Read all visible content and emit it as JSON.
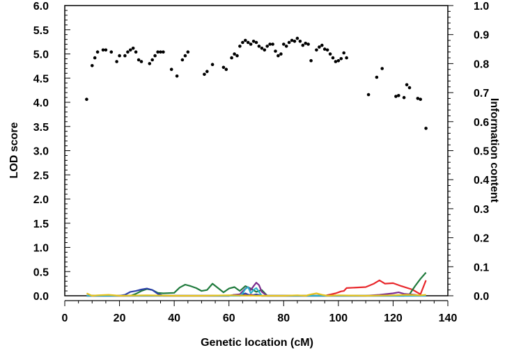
{
  "chart_data": {
    "type": "line",
    "title": "",
    "xlabel": "Genetic location (cM)",
    "ylabel": "LOD score",
    "y2label": "Information content",
    "xlim": [
      0,
      140
    ],
    "ylim": [
      0,
      6.0
    ],
    "y2lim": [
      0,
      1.0
    ],
    "x_ticks": [
      "0",
      "20",
      "40",
      "60",
      "80",
      "100",
      "120",
      "140"
    ],
    "y_ticks": [
      "0.0",
      "0.5",
      "1.0",
      "1.5",
      "2.0",
      "2.5",
      "3.0",
      "3.5",
      "4.0",
      "4.5",
      "5.0",
      "5.5",
      "6.0"
    ],
    "y2_ticks": [
      "0.0",
      "0.1",
      "0.2",
      "0.3",
      "0.4",
      "0.5",
      "0.6",
      "0.7",
      "0.8",
      "0.9",
      "1.0"
    ],
    "grid": false,
    "info_points": {
      "axis": "right",
      "color": "#000000",
      "x": [
        8,
        10,
        11,
        12,
        14,
        15,
        17,
        19,
        20,
        22,
        23,
        24,
        25,
        26,
        27,
        28,
        31,
        32,
        33,
        34,
        35,
        36,
        39,
        41,
        43,
        44,
        45,
        51,
        52,
        54,
        58,
        59,
        61,
        62,
        63,
        64,
        65,
        66,
        67,
        68,
        69,
        70,
        71,
        72,
        73,
        74,
        75,
        76,
        77,
        78,
        79,
        80,
        81,
        82,
        83,
        84,
        85,
        86,
        87,
        88,
        89,
        90,
        92,
        93,
        94,
        95,
        96,
        97,
        98,
        99,
        100,
        101,
        102,
        103,
        111,
        114,
        116,
        121,
        122,
        124,
        125,
        126,
        129,
        130,
        132
      ],
      "y": [
        0.677,
        0.793,
        0.82,
        0.84,
        0.847,
        0.847,
        0.84,
        0.807,
        0.827,
        0.827,
        0.84,
        0.847,
        0.853,
        0.84,
        0.813,
        0.807,
        0.8,
        0.813,
        0.827,
        0.84,
        0.84,
        0.84,
        0.78,
        0.757,
        0.813,
        0.827,
        0.84,
        0.763,
        0.773,
        0.797,
        0.787,
        0.78,
        0.82,
        0.833,
        0.827,
        0.86,
        0.873,
        0.88,
        0.873,
        0.867,
        0.877,
        0.873,
        0.86,
        0.853,
        0.847,
        0.86,
        0.867,
        0.867,
        0.843,
        0.827,
        0.833,
        0.867,
        0.86,
        0.873,
        0.88,
        0.877,
        0.887,
        0.877,
        0.863,
        0.87,
        0.867,
        0.81,
        0.847,
        0.857,
        0.863,
        0.85,
        0.847,
        0.833,
        0.82,
        0.807,
        0.81,
        0.817,
        0.837,
        0.82,
        0.693,
        0.753,
        0.783,
        0.687,
        0.69,
        0.683,
        0.727,
        0.717,
        0.68,
        0.677,
        0.577
      ]
    },
    "series": [
      {
        "color": "#e8262a",
        "axis": "left",
        "x": [
          8,
          20,
          60,
          64,
          68,
          70,
          72,
          95,
          99,
          101,
          102,
          103,
          110,
          113,
          115,
          117,
          120,
          123,
          127,
          130,
          132
        ],
        "y": [
          0.0,
          0.0,
          0.0,
          0.01,
          0.02,
          0.01,
          0.0,
          0.0,
          0.05,
          0.09,
          0.1,
          0.16,
          0.18,
          0.25,
          0.32,
          0.25,
          0.26,
          0.2,
          0.13,
          0.03,
          0.32
        ]
      },
      {
        "color": "#1f7a3c",
        "axis": "left",
        "x": [
          8,
          12,
          16,
          20,
          24,
          26,
          28,
          30,
          32,
          34,
          36,
          40,
          42,
          44,
          46,
          48,
          50,
          52,
          54,
          56,
          58,
          60,
          62,
          64,
          66,
          68,
          70,
          72,
          74,
          80,
          100,
          120,
          124,
          126,
          128,
          130,
          132
        ],
        "y": [
          0.0,
          0.0,
          0.0,
          0.0,
          0.0,
          0.04,
          0.1,
          0.14,
          0.12,
          0.06,
          0.05,
          0.06,
          0.17,
          0.23,
          0.2,
          0.16,
          0.1,
          0.12,
          0.25,
          0.16,
          0.07,
          0.15,
          0.18,
          0.1,
          0.2,
          0.15,
          0.08,
          0.12,
          0.0,
          0.0,
          0.0,
          0.0,
          0.0,
          0.03,
          0.2,
          0.35,
          0.48
        ]
      },
      {
        "color": "#2b3fa8",
        "axis": "left",
        "x": [
          8,
          20,
          22,
          24,
          26,
          28,
          30,
          32,
          34,
          36,
          60,
          62,
          64,
          66,
          68,
          70,
          72,
          100,
          132
        ],
        "y": [
          0.0,
          0.0,
          0.02,
          0.08,
          0.1,
          0.13,
          0.15,
          0.12,
          0.04,
          0.0,
          0.0,
          0.02,
          0.0,
          0.05,
          0.0,
          0.03,
          0.0,
          0.0,
          0.0
        ]
      },
      {
        "color": "#7b2d8e",
        "axis": "left",
        "x": [
          8,
          60,
          62,
          64,
          66,
          67,
          68,
          69,
          70,
          71,
          72,
          74,
          110,
          115,
          120,
          122,
          124,
          126,
          128,
          130,
          132
        ],
        "y": [
          0.0,
          0.0,
          0.02,
          0.03,
          0.15,
          0.18,
          0.12,
          0.2,
          0.27,
          0.22,
          0.08,
          0.0,
          0.0,
          0.02,
          0.05,
          0.07,
          0.04,
          0.03,
          0.02,
          0.0,
          0.01
        ]
      },
      {
        "color": "#2bb0c9",
        "axis": "left",
        "x": [
          8,
          64,
          65,
          66,
          67,
          68,
          69,
          70,
          71,
          72,
          132
        ],
        "y": [
          0.0,
          0.0,
          0.05,
          0.14,
          0.18,
          0.05,
          0.12,
          0.16,
          0.08,
          0.0,
          0.0
        ]
      },
      {
        "color": "#e8c21b",
        "axis": "left",
        "x": [
          8,
          10,
          12,
          16,
          20,
          30,
          40,
          50,
          60,
          70,
          80,
          85,
          88,
          90,
          92,
          94,
          96,
          100,
          110,
          120,
          125,
          130,
          132
        ],
        "y": [
          0.05,
          0.0,
          0.01,
          0.02,
          0.0,
          0.01,
          0.0,
          0.0,
          0.01,
          0.0,
          0.0,
          0.01,
          0.0,
          0.03,
          0.05,
          0.02,
          0.0,
          0.01,
          0.0,
          0.01,
          0.02,
          0.01,
          0.02
        ]
      }
    ]
  }
}
